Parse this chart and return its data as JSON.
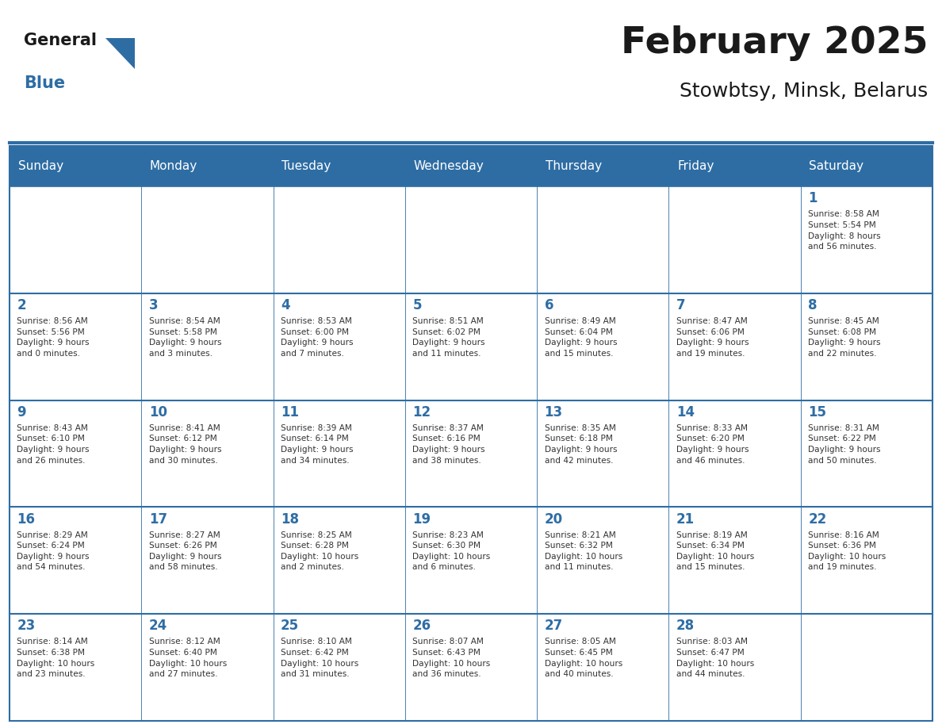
{
  "title": "February 2025",
  "subtitle": "Stowbtsy, Minsk, Belarus",
  "days_of_week": [
    "Sunday",
    "Monday",
    "Tuesday",
    "Wednesday",
    "Thursday",
    "Friday",
    "Saturday"
  ],
  "header_bg": "#2E6DA4",
  "header_text_color": "#FFFFFF",
  "border_color": "#2E6DA4",
  "title_color": "#1a1a1a",
  "subtitle_color": "#1a1a1a",
  "day_number_color": "#2E6DA4",
  "info_text_color": "#333333",
  "weeks": [
    [
      {
        "day": null,
        "info": ""
      },
      {
        "day": null,
        "info": ""
      },
      {
        "day": null,
        "info": ""
      },
      {
        "day": null,
        "info": ""
      },
      {
        "day": null,
        "info": ""
      },
      {
        "day": null,
        "info": ""
      },
      {
        "day": 1,
        "info": "Sunrise: 8:58 AM\nSunset: 5:54 PM\nDaylight: 8 hours\nand 56 minutes."
      }
    ],
    [
      {
        "day": 2,
        "info": "Sunrise: 8:56 AM\nSunset: 5:56 PM\nDaylight: 9 hours\nand 0 minutes."
      },
      {
        "day": 3,
        "info": "Sunrise: 8:54 AM\nSunset: 5:58 PM\nDaylight: 9 hours\nand 3 minutes."
      },
      {
        "day": 4,
        "info": "Sunrise: 8:53 AM\nSunset: 6:00 PM\nDaylight: 9 hours\nand 7 minutes."
      },
      {
        "day": 5,
        "info": "Sunrise: 8:51 AM\nSunset: 6:02 PM\nDaylight: 9 hours\nand 11 minutes."
      },
      {
        "day": 6,
        "info": "Sunrise: 8:49 AM\nSunset: 6:04 PM\nDaylight: 9 hours\nand 15 minutes."
      },
      {
        "day": 7,
        "info": "Sunrise: 8:47 AM\nSunset: 6:06 PM\nDaylight: 9 hours\nand 19 minutes."
      },
      {
        "day": 8,
        "info": "Sunrise: 8:45 AM\nSunset: 6:08 PM\nDaylight: 9 hours\nand 22 minutes."
      }
    ],
    [
      {
        "day": 9,
        "info": "Sunrise: 8:43 AM\nSunset: 6:10 PM\nDaylight: 9 hours\nand 26 minutes."
      },
      {
        "day": 10,
        "info": "Sunrise: 8:41 AM\nSunset: 6:12 PM\nDaylight: 9 hours\nand 30 minutes."
      },
      {
        "day": 11,
        "info": "Sunrise: 8:39 AM\nSunset: 6:14 PM\nDaylight: 9 hours\nand 34 minutes."
      },
      {
        "day": 12,
        "info": "Sunrise: 8:37 AM\nSunset: 6:16 PM\nDaylight: 9 hours\nand 38 minutes."
      },
      {
        "day": 13,
        "info": "Sunrise: 8:35 AM\nSunset: 6:18 PM\nDaylight: 9 hours\nand 42 minutes."
      },
      {
        "day": 14,
        "info": "Sunrise: 8:33 AM\nSunset: 6:20 PM\nDaylight: 9 hours\nand 46 minutes."
      },
      {
        "day": 15,
        "info": "Sunrise: 8:31 AM\nSunset: 6:22 PM\nDaylight: 9 hours\nand 50 minutes."
      }
    ],
    [
      {
        "day": 16,
        "info": "Sunrise: 8:29 AM\nSunset: 6:24 PM\nDaylight: 9 hours\nand 54 minutes."
      },
      {
        "day": 17,
        "info": "Sunrise: 8:27 AM\nSunset: 6:26 PM\nDaylight: 9 hours\nand 58 minutes."
      },
      {
        "day": 18,
        "info": "Sunrise: 8:25 AM\nSunset: 6:28 PM\nDaylight: 10 hours\nand 2 minutes."
      },
      {
        "day": 19,
        "info": "Sunrise: 8:23 AM\nSunset: 6:30 PM\nDaylight: 10 hours\nand 6 minutes."
      },
      {
        "day": 20,
        "info": "Sunrise: 8:21 AM\nSunset: 6:32 PM\nDaylight: 10 hours\nand 11 minutes."
      },
      {
        "day": 21,
        "info": "Sunrise: 8:19 AM\nSunset: 6:34 PM\nDaylight: 10 hours\nand 15 minutes."
      },
      {
        "day": 22,
        "info": "Sunrise: 8:16 AM\nSunset: 6:36 PM\nDaylight: 10 hours\nand 19 minutes."
      }
    ],
    [
      {
        "day": 23,
        "info": "Sunrise: 8:14 AM\nSunset: 6:38 PM\nDaylight: 10 hours\nand 23 minutes."
      },
      {
        "day": 24,
        "info": "Sunrise: 8:12 AM\nSunset: 6:40 PM\nDaylight: 10 hours\nand 27 minutes."
      },
      {
        "day": 25,
        "info": "Sunrise: 8:10 AM\nSunset: 6:42 PM\nDaylight: 10 hours\nand 31 minutes."
      },
      {
        "day": 26,
        "info": "Sunrise: 8:07 AM\nSunset: 6:43 PM\nDaylight: 10 hours\nand 36 minutes."
      },
      {
        "day": 27,
        "info": "Sunrise: 8:05 AM\nSunset: 6:45 PM\nDaylight: 10 hours\nand 40 minutes."
      },
      {
        "day": 28,
        "info": "Sunrise: 8:03 AM\nSunset: 6:47 PM\nDaylight: 10 hours\nand 44 minutes."
      },
      {
        "day": null,
        "info": ""
      }
    ]
  ]
}
